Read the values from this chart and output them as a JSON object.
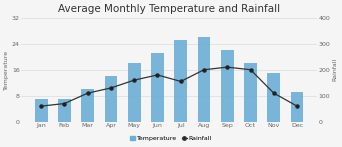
{
  "title": "Average Monthly Temperature and Rainfall",
  "months": [
    "Jan",
    "Feb",
    "Mar",
    "Apr",
    "May",
    "Jun",
    "Jul",
    "Aug",
    "Sep",
    "Oct",
    "Nov",
    "Dec"
  ],
  "temperature": [
    7,
    7,
    10,
    14,
    18,
    21,
    25,
    26,
    22,
    18,
    15,
    9
  ],
  "rainfall": [
    60,
    70,
    110,
    130,
    160,
    180,
    155,
    200,
    210,
    200,
    110,
    60
  ],
  "bar_color": "#6aaed6",
  "line_color": "#333333",
  "marker_color": "#222222",
  "temp_ylim": [
    0,
    32
  ],
  "temp_yticks": [
    0,
    8,
    16,
    24,
    32
  ],
  "rain_ylim": [
    0,
    400
  ],
  "rain_yticks": [
    0,
    100,
    200,
    300,
    400
  ],
  "ylabel_left": "Temperature",
  "ylabel_right": "Rainfall",
  "legend_temp": "Temperature",
  "legend_rain": "Rainfall",
  "title_fontsize": 7.5,
  "axis_fontsize": 4.5,
  "label_fontsize": 4.5,
  "legend_fontsize": 4.5,
  "background_color": "#f5f5f5"
}
